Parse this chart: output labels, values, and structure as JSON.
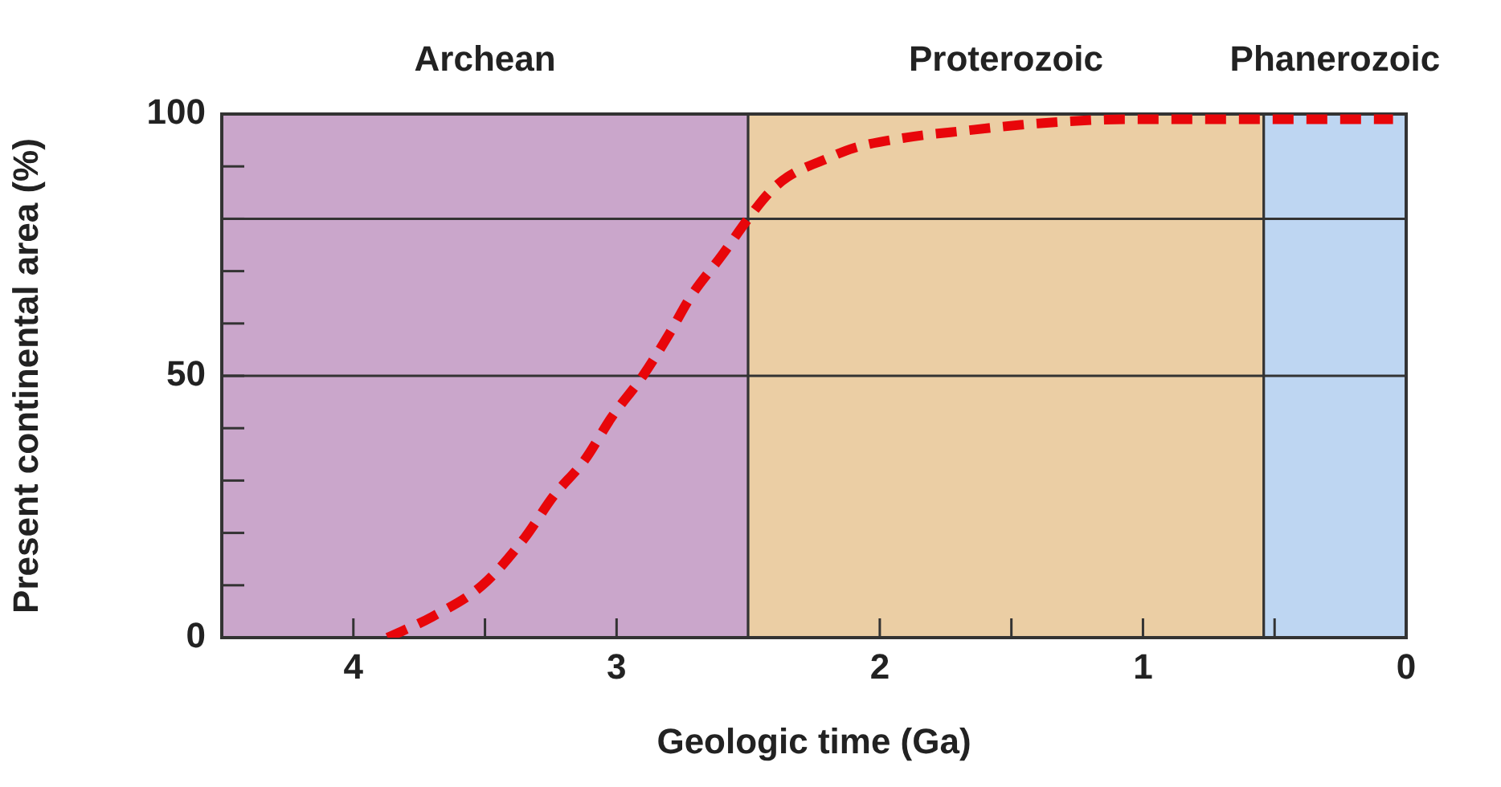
{
  "chart_data": {
    "type": "line",
    "xlabel": "Geologic time (Ga)",
    "ylabel": "Present continental area (%)",
    "xlim": [
      4.5,
      0
    ],
    "xticks": [
      4,
      {
        "value": 3.5,
        "label": null
      },
      3,
      2,
      {
        "value": 1.5,
        "label": null
      },
      1,
      {
        "value": 0.5,
        "label": null
      },
      0
    ],
    "ylim": [
      0,
      100
    ],
    "yticks": [
      0,
      {
        "value": 10,
        "label": null
      },
      {
        "value": 20,
        "label": null
      },
      {
        "value": 30,
        "label": null
      },
      {
        "value": 40,
        "label": null
      },
      50,
      {
        "value": 60,
        "label": null
      },
      {
        "value": 70,
        "label": null
      },
      {
        "value": 80,
        "label": null
      },
      {
        "value": 90,
        "label": null
      },
      100
    ],
    "legend": false,
    "line_style": "dashed",
    "marker": "none",
    "series": [
      {
        "color": "#e8060a",
        "x": [
          3.87,
          3.7,
          3.51,
          3.35,
          3.24,
          3.12,
          3.02,
          2.9,
          2.8,
          2.72,
          2.6,
          2.5,
          2.42,
          2.35,
          2.2,
          2.1,
          1.9,
          1.68,
          1.4,
          1.07,
          0.7,
          0.3,
          0.05
        ],
        "values": [
          0,
          4,
          10,
          19,
          27,
          34,
          42,
          50,
          58,
          65,
          73,
          80,
          85,
          88,
          91.5,
          93.5,
          95.5,
          96.8,
          98.2,
          99,
          99,
          99,
          99
        ]
      }
    ],
    "bands": [
      {
        "axis": "x",
        "from": 4.5,
        "to": 2.5,
        "label": "Archean",
        "color": "#caa6cb"
      },
      {
        "axis": "x",
        "from": 2.5,
        "to": 0.541,
        "label": "Proterozoic",
        "color": "#ebcea4"
      },
      {
        "axis": "x",
        "from": 0.541,
        "to": 0,
        "label": "Phanerozoic",
        "color": "#bed6f2"
      }
    ],
    "ref_lines": [
      {
        "axis": "y",
        "value": 80,
        "label": null
      },
      {
        "axis": "y",
        "value": 50,
        "label": null
      }
    ]
  }
}
